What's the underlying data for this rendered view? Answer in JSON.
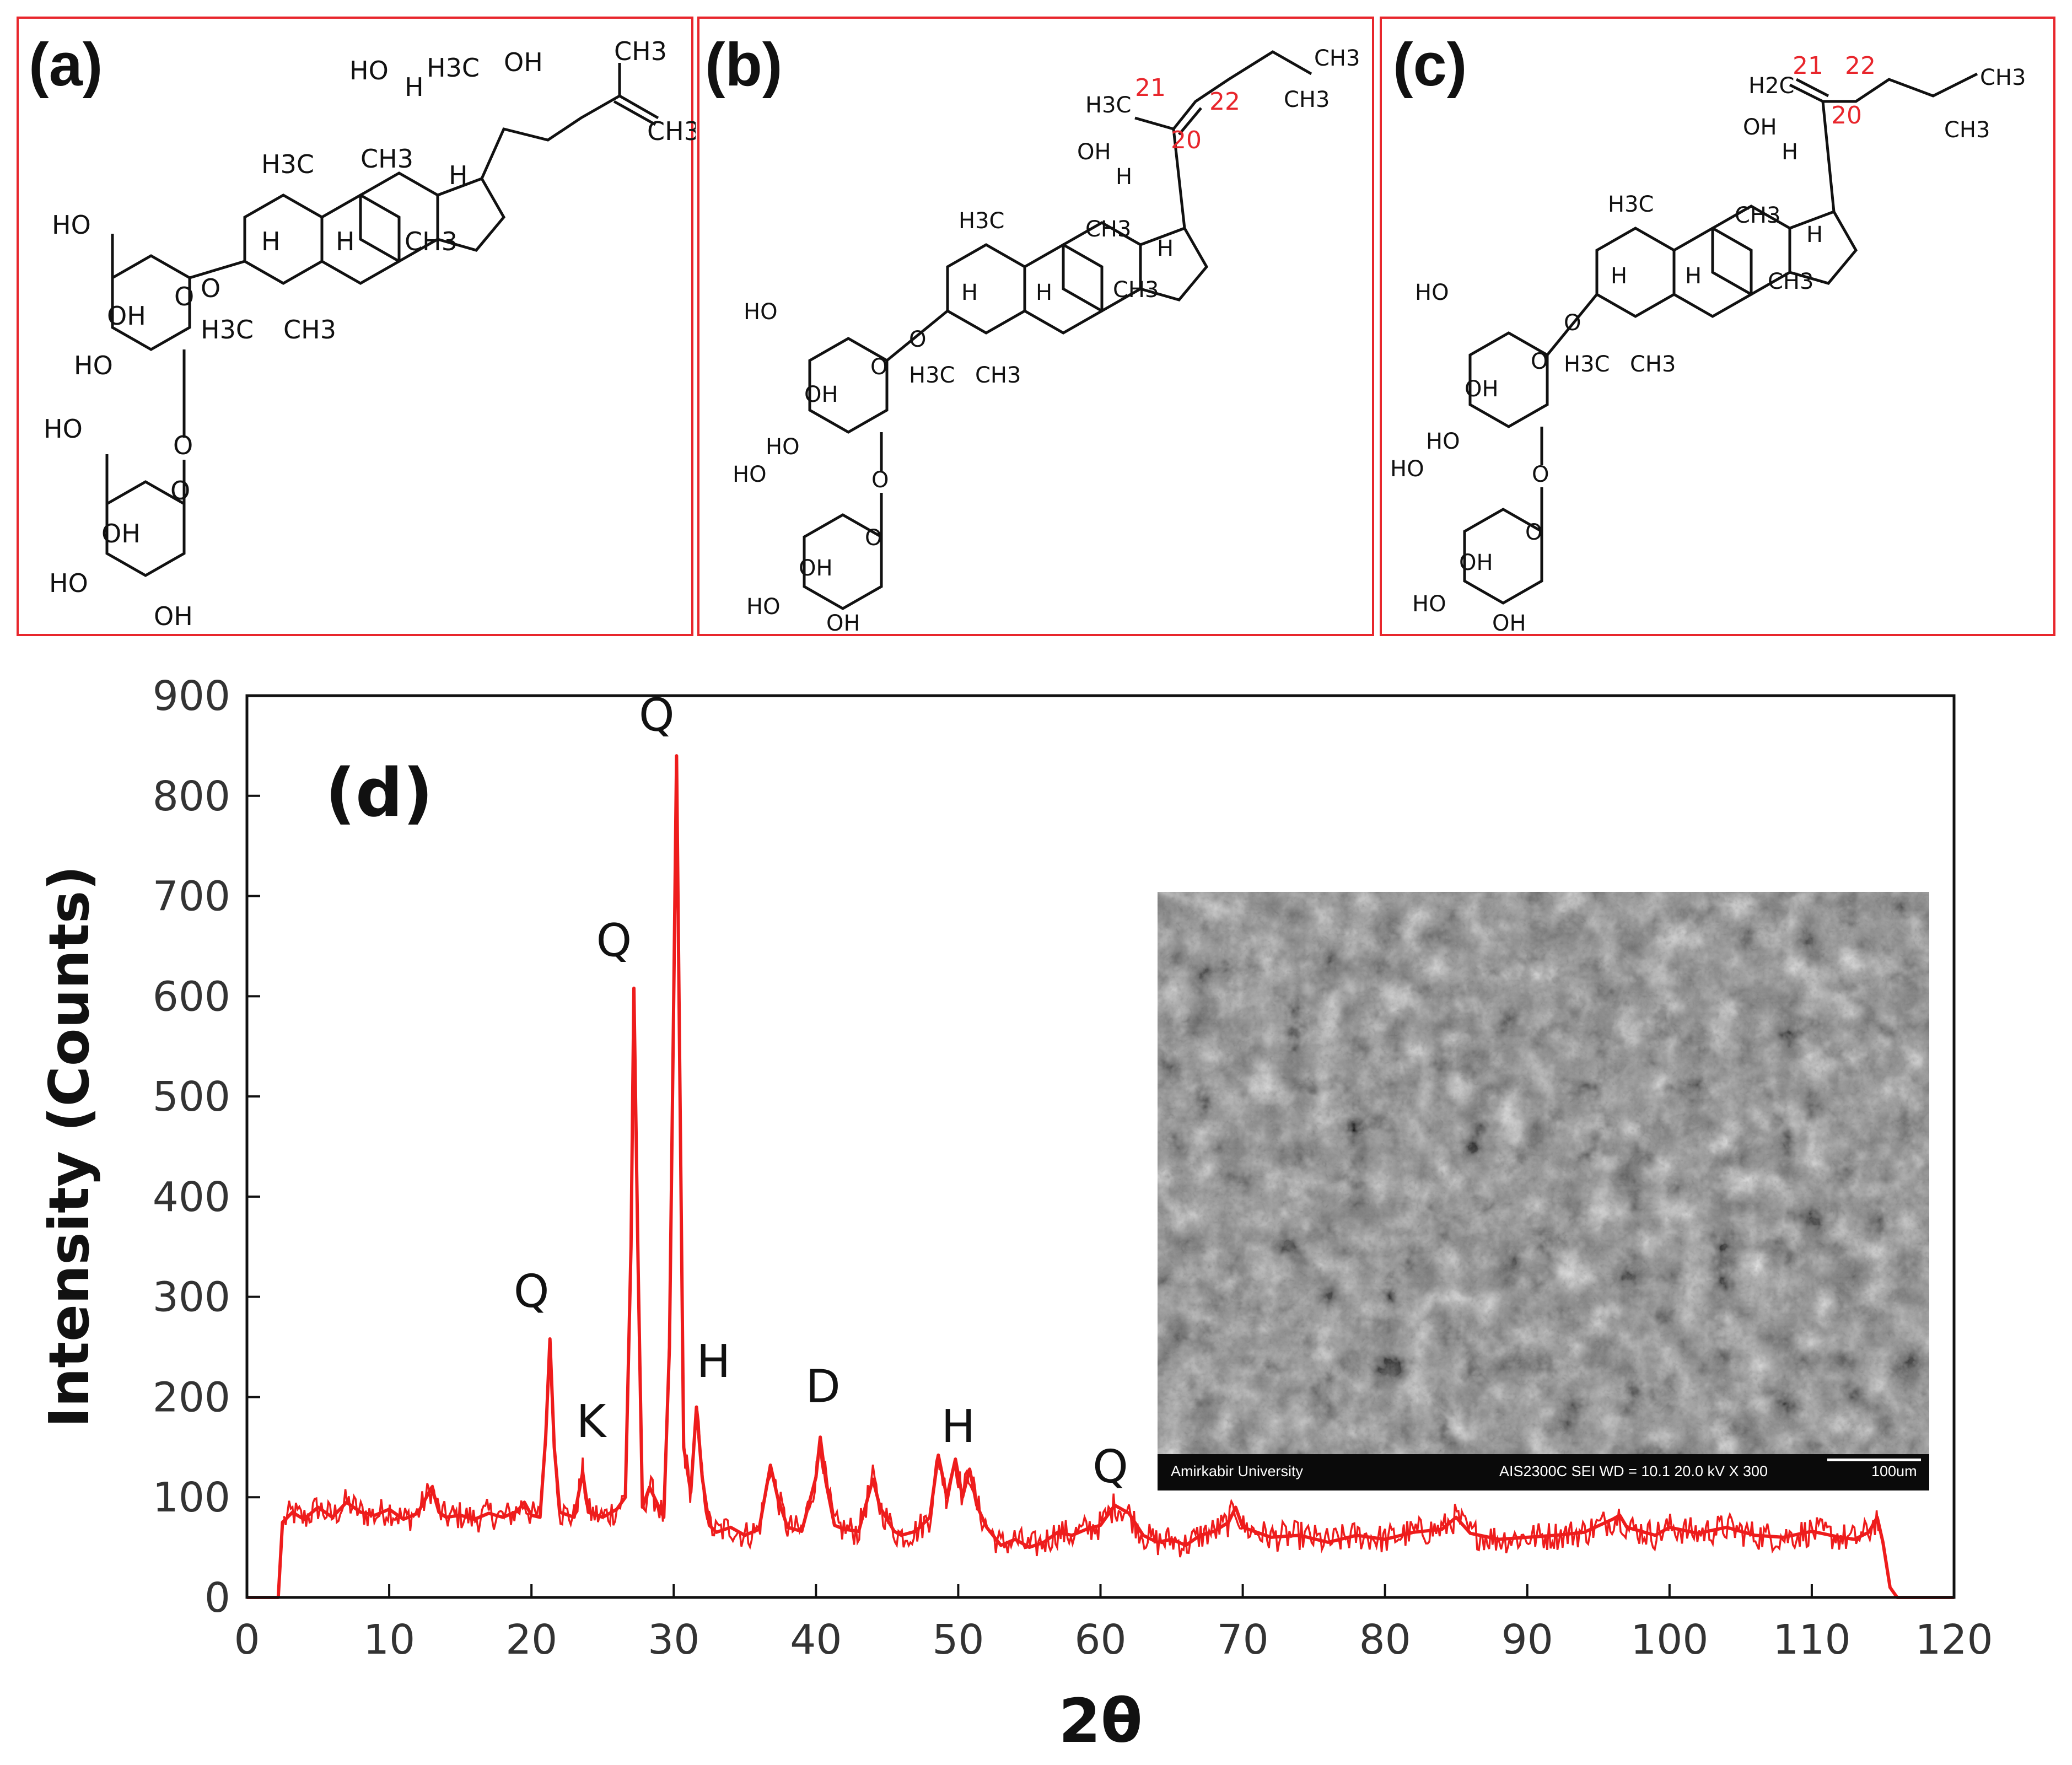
{
  "panels": [
    {
      "label": "(a)",
      "atoms": {
        "ho_top": "HO",
        "h3c_top": "H3C",
        "oh_top": "OH",
        "ch3_a": "CH3",
        "ch3_b": "CH3",
        "h3c_mid": "H3C",
        "h_mid": "H",
        "ch3_mid": "CH3",
        "h_ring": "H",
        "ch3_lower": "CH3",
        "h_a": "H",
        "h_b": "H",
        "ho_sugar1": "HO",
        "o_link": "O",
        "oh_s1": "OH",
        "ho_s1": "HO",
        "o_glyc": "O",
        "h3c_low": "H3C",
        "ch3_low": "CH3",
        "ho_sugar2": "HO",
        "oh_s2": "OH",
        "ho_s2": "HO",
        "oh_s2b": "OH",
        "o_ring1": "O",
        "o_ring2": "O"
      },
      "numbers": []
    },
    {
      "label": "(b)",
      "atoms": {
        "ch3_top": "CH3",
        "ch3_b": "CH3",
        "h3c_side": "H3C",
        "oh": "OH",
        "h_a": "H",
        "h3c_mid": "H3C",
        "ch3_mid": "CH3",
        "h_b": "H",
        "h_c": "H",
        "h_d": "H",
        "ch3_lower": "CH3",
        "ho_sugar1": "HO",
        "o_link": "O",
        "oh_s1": "OH",
        "ho_s1": "HO",
        "h3c_low": "H3C",
        "ch3_low": "CH3",
        "o_glyc": "O",
        "ho_sugar2": "HO",
        "oh_s2": "OH",
        "ho_s2": "HO",
        "oh_s2b": "OH",
        "o_ring1": "O",
        "o_ring2": "O"
      },
      "numbers": [
        "21",
        "22",
        "20"
      ]
    },
    {
      "label": "(c)",
      "atoms": {
        "h2c": "H2C",
        "ch3_a": "CH3",
        "ch3_b": "CH3",
        "oh": "OH",
        "h_a": "H",
        "h3c_mid": "H3C",
        "ch3_mid": "CH3",
        "h_b": "H",
        "h_c": "H",
        "h_d": "H",
        "ch3_lower": "CH3",
        "ho_sugar1": "HO",
        "o_link": "O",
        "oh_s1": "OH",
        "ho_s1": "HO",
        "h3c_low": "H3C",
        "ch3_low": "CH3",
        "o_glyc": "O",
        "ho_sugar2": "HO",
        "oh_s2": "OH",
        "ho_s2": "HO",
        "oh_s2b": "OH",
        "o_ring1": "O",
        "o_ring2": "O"
      },
      "numbers": [
        "21",
        "22",
        "20"
      ]
    }
  ],
  "chart_data": {
    "type": "line",
    "panel_label": "(d)",
    "xlabel": "2θ",
    "ylabel": "Intensity (Counts)",
    "xlim": [
      0,
      120
    ],
    "ylim": [
      0,
      900
    ],
    "xticks": [
      0,
      10,
      20,
      30,
      40,
      50,
      60,
      70,
      80,
      90,
      100,
      110,
      120
    ],
    "yticks": [
      0,
      100,
      200,
      300,
      400,
      500,
      600,
      700,
      800,
      900
    ],
    "grid": false,
    "legend": "none",
    "series_color": "#ee1c1c",
    "series": [
      {
        "name": "",
        "points": [
          [
            0,
            0
          ],
          [
            2.2,
            0
          ],
          [
            2.5,
            75
          ],
          [
            3.2,
            85
          ],
          [
            4,
            78
          ],
          [
            5,
            90
          ],
          [
            6,
            80
          ],
          [
            7,
            95
          ],
          [
            8,
            85
          ],
          [
            9,
            82
          ],
          [
            10,
            88
          ],
          [
            11,
            78
          ],
          [
            12,
            84
          ],
          [
            13,
            110
          ],
          [
            13.5,
            85
          ],
          [
            14,
            80
          ],
          [
            15,
            82
          ],
          [
            16,
            78
          ],
          [
            17,
            84
          ],
          [
            18,
            80
          ],
          [
            19,
            86
          ],
          [
            19.5,
            95
          ],
          [
            20,
            82
          ],
          [
            20.6,
            80
          ],
          [
            21.0,
            160
          ],
          [
            21.3,
            258
          ],
          [
            21.6,
            150
          ],
          [
            22,
            85
          ],
          [
            23,
            80
          ],
          [
            23.6,
            125
          ],
          [
            24,
            85
          ],
          [
            25,
            80
          ],
          [
            26,
            88
          ],
          [
            26.6,
            100
          ],
          [
            27.0,
            350
          ],
          [
            27.2,
            608
          ],
          [
            27.5,
            330
          ],
          [
            27.8,
            90
          ],
          [
            28.3,
            110
          ],
          [
            28.8,
            95
          ],
          [
            29.3,
            80
          ],
          [
            29.7,
            250
          ],
          [
            30.0,
            600
          ],
          [
            30.2,
            840
          ],
          [
            30.4,
            560
          ],
          [
            30.7,
            150
          ],
          [
            31.2,
            105
          ],
          [
            31.6,
            190
          ],
          [
            32,
            120
          ],
          [
            32.5,
            72
          ],
          [
            33,
            65
          ],
          [
            34,
            70
          ],
          [
            35,
            62
          ],
          [
            36,
            68
          ],
          [
            36.8,
            132
          ],
          [
            37.3,
            100
          ],
          [
            38,
            70
          ],
          [
            39,
            66
          ],
          [
            40.0,
            120
          ],
          [
            40.3,
            160
          ],
          [
            40.7,
            115
          ],
          [
            41.3,
            72
          ],
          [
            42,
            68
          ],
          [
            43,
            66
          ],
          [
            44,
            118
          ],
          [
            44.5,
            90
          ],
          [
            45.5,
            66
          ],
          [
            46,
            62
          ],
          [
            47,
            66
          ],
          [
            48,
            80
          ],
          [
            48.6,
            142
          ],
          [
            49.2,
            100
          ],
          [
            49.8,
            138
          ],
          [
            50.3,
            100
          ],
          [
            50.8,
            128
          ],
          [
            51.3,
            92
          ],
          [
            52,
            70
          ],
          [
            53,
            52
          ],
          [
            54,
            58
          ],
          [
            55,
            50
          ],
          [
            56,
            55
          ],
          [
            57,
            65
          ],
          [
            58,
            62
          ],
          [
            59,
            68
          ],
          [
            60,
            72
          ],
          [
            61,
            92
          ],
          [
            62,
            84
          ],
          [
            63,
            62
          ],
          [
            64,
            55
          ],
          [
            65,
            58
          ],
          [
            66,
            52
          ],
          [
            67,
            62
          ],
          [
            68,
            66
          ],
          [
            69,
            75
          ],
          [
            69.5,
            90
          ],
          [
            70,
            70
          ],
          [
            72,
            60
          ],
          [
            74,
            62
          ],
          [
            76,
            55
          ],
          [
            78,
            62
          ],
          [
            80,
            58
          ],
          [
            82,
            65
          ],
          [
            84,
            68
          ],
          [
            85,
            80
          ],
          [
            86,
            64
          ],
          [
            88,
            58
          ],
          [
            90,
            60
          ],
          [
            92,
            62
          ],
          [
            94,
            65
          ],
          [
            96,
            78
          ],
          [
            96.5,
            82
          ],
          [
            97,
            70
          ],
          [
            99,
            62
          ],
          [
            100,
            70
          ],
          [
            102,
            64
          ],
          [
            104,
            70
          ],
          [
            106,
            62
          ],
          [
            108,
            60
          ],
          [
            110,
            66
          ],
          [
            112,
            60
          ],
          [
            113,
            58
          ],
          [
            114,
            65
          ],
          [
            114.6,
            80
          ],
          [
            115,
            55
          ],
          [
            115.5,
            10
          ],
          [
            116,
            0
          ],
          [
            120,
            0
          ]
        ]
      }
    ],
    "annotations": [
      {
        "text": "Q",
        "x": 20.0,
        "y": 290
      },
      {
        "text": "K",
        "x": 24.2,
        "y": 160
      },
      {
        "text": "Q",
        "x": 25.8,
        "y": 640
      },
      {
        "text": "Q",
        "x": 28.8,
        "y": 865
      },
      {
        "text": "H",
        "x": 32.8,
        "y": 220
      },
      {
        "text": "D",
        "x": 40.5,
        "y": 195
      },
      {
        "text": "H",
        "x": 50.0,
        "y": 155
      },
      {
        "text": "Q",
        "x": 60.7,
        "y": 115
      }
    ]
  },
  "inset": {
    "name": "SEM micrograph",
    "caption_left": "Amirkabir University",
    "caption_mid": "AIS2300C SEI WD = 10.1 20.0 kV X 300",
    "caption_scale": "100um"
  }
}
